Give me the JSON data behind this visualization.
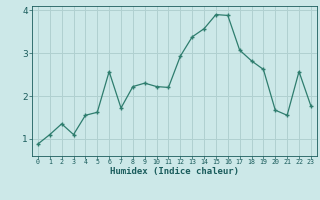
{
  "x": [
    0,
    1,
    2,
    3,
    4,
    5,
    6,
    7,
    8,
    9,
    10,
    11,
    12,
    13,
    14,
    15,
    16,
    17,
    18,
    19,
    20,
    21,
    22,
    23
  ],
  "y": [
    0.88,
    1.1,
    1.35,
    1.1,
    1.55,
    1.62,
    2.57,
    1.72,
    2.22,
    2.3,
    2.22,
    2.2,
    2.93,
    3.38,
    3.57,
    3.9,
    3.88,
    3.07,
    2.82,
    2.62,
    1.67,
    1.55,
    2.57,
    1.77
  ],
  "line_color": "#2e7d6e",
  "marker": "+",
  "bg_color": "#cce8e8",
  "grid_color": "#b0d0d0",
  "xlabel": "Humidex (Indice chaleur)",
  "xlabel_color": "#1a5c5c",
  "tick_color": "#1a5c5c",
  "ylim": [
    0.6,
    4.1
  ],
  "xlim": [
    -0.5,
    23.5
  ],
  "yticks": [
    1,
    2,
    3,
    4
  ],
  "xticks": [
    0,
    1,
    2,
    3,
    4,
    5,
    6,
    7,
    8,
    9,
    10,
    11,
    12,
    13,
    14,
    15,
    16,
    17,
    18,
    19,
    20,
    21,
    22,
    23
  ]
}
